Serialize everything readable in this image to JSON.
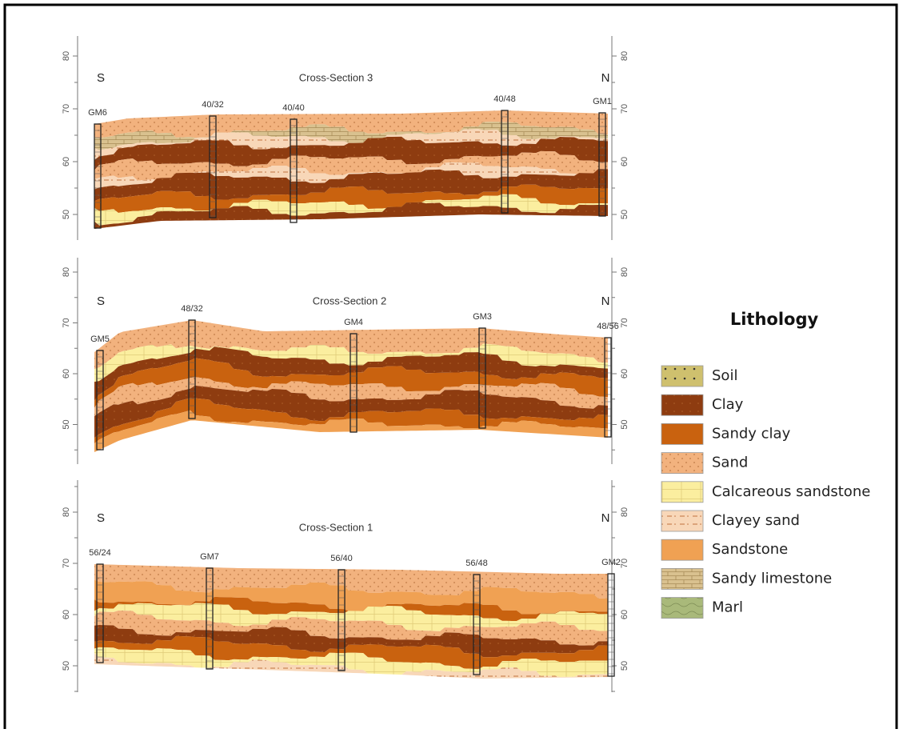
{
  "sections": [
    {
      "title": "Cross-Section 3",
      "left": "S",
      "right": "N",
      "left_ticks": [
        80,
        70,
        60,
        50
      ],
      "right_ticks": [
        80,
        70,
        60,
        50
      ],
      "boreholes": [
        "GM6",
        "40/32",
        "40/40",
        "40/48",
        "GM1"
      ]
    },
    {
      "title": "Cross-Section 2",
      "left": "S",
      "right": "N",
      "left_ticks": [
        80,
        70,
        60,
        50
      ],
      "right_ticks": [
        80,
        70,
        60,
        50
      ],
      "boreholes": [
        "GM5",
        "48/32",
        "GM4",
        "GM3",
        "48/56"
      ]
    },
    {
      "title": "Cross-Section 1",
      "left": "S",
      "right": "N",
      "left_ticks": [
        80,
        70,
        60,
        50
      ],
      "right_ticks": [
        80,
        70,
        60,
        50
      ],
      "boreholes": [
        "56/24",
        "GM7",
        "56/40",
        "56/48",
        "GM2"
      ]
    }
  ],
  "legend": {
    "title": "Lithology",
    "items": [
      "Soil",
      "Clay",
      "Sandy clay",
      "Sand",
      "Calcareous sandstone",
      "Clayey sand",
      "Sandstone",
      "Sandy limestone",
      "Marl"
    ]
  }
}
